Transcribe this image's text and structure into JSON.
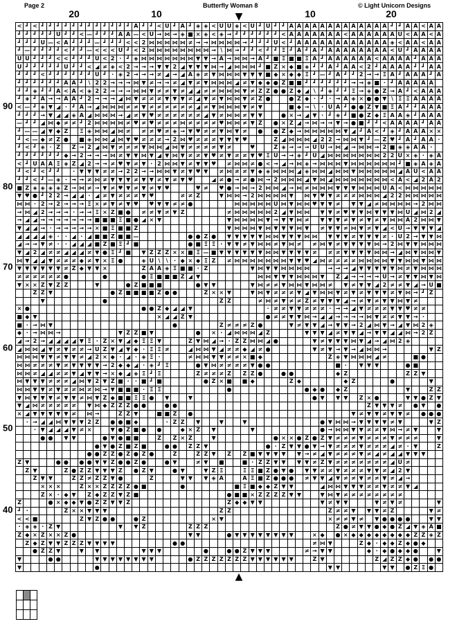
{
  "header": {
    "page": "Page 2",
    "title": "Butterfly Woman 8",
    "copyright": "© Light Unicorn Designs"
  },
  "column_labels": [
    "20",
    "10",
    "10",
    "20"
  ],
  "row_labels": [
    "90",
    "80",
    "70",
    "60",
    "50",
    "40"
  ],
  "center_markers": {
    "top": "▼",
    "bottom": "▲"
  },
  "symbol_key": {
    "J": {
      "glyph": "┛",
      "icon": "corner-bracket"
    },
    "<": {
      "glyph": "<",
      "icon": "less-than"
    },
    "A": {
      "glyph": "A",
      "icon": "letter-a"
    },
    "U": {
      "glyph": "U",
      "icon": "letter-u"
    },
    "d": {
      "glyph": "◈",
      "icon": "hatched-diamond"
    },
    "#": {
      "glyph": "≠",
      "icon": "slashed-hash"
    },
    ">": {
      "glyph": "→",
      "icon": "arrow-right"
    },
    "H": {
      "glyph": "⋈",
      "icon": "bowtie"
    },
    "V": {
      "glyph": "▼",
      "icon": "triangle-down"
    },
    "Z": {
      "glyph": "Z",
      "icon": "letter-z"
    },
    "X": {
      "glyph": "×",
      "icon": "cross"
    },
    "S": {
      "glyph": "■",
      "icon": "filled-square"
    },
    "O": {
      "glyph": "●",
      "icon": "filled-circle"
    },
    "D": {
      "glyph": "◆",
      "icon": "filled-diamond"
    },
    "h": {
      "glyph": "♥",
      "icon": "heart"
    },
    "T": {
      "glyph": "◢",
      "icon": "right-triangle"
    },
    "2": {
      "glyph": "2",
      "icon": "digit-two"
    },
    "I": {
      "glyph": "Ξ",
      "icon": "hourglass"
    },
    "-": {
      "glyph": "—",
      "icon": "dash"
    },
    ".": {
      "glyph": "·",
      "icon": "dot"
    },
    "\\": {
      "glyph": "\\",
      "icon": "backslash"
    }
  },
  "chart_rows": [
    "<J<JJJJJJJJJJJJAJJ<UJAJdd<UUd<UJUJJAAAAAAAAAAAAAJJAA<AA",
    "JJJJJUJJ<-JJJAA-<U>H>dSXd<d>JJJJJJ<AAAAAAA<AAAAAAU<AA<A",
    "JJJU-<AJJJ-JJJ<<2HHHHH#>>HHHH>JJJU<JAAAAAAAAAAAAd<AA<AA",
    "J-JJJJ<JJ-<<<UJ<2HHHHHHHH>\\H>JJ<JJIJAJAJAAAAAAAA<UJAAAA",
    "UUJJJ<<JJJU<2.JdHHHHHHHVV>A>HH>AJSISSIAJAAAAAA<AAAAJAAA",
    "UJJJJJUJJ<T#d<2>>>VV2TVVVH>THHHJSZXDSdJJAJAA<2JAAAAJJAA",
    "JJJ<JJJJJJUJ.d2>>>#T>TAd#VHHHVVVSDXDDIJ-JAJJ2>>IAJAAAJA",
    "JJJJJJAAJ\\22>>>HV#>>#TV#VHHHT#VDDOZSSJJJJJJ>>dS.JAAAAA",
    "JJdJJA<A<d22>>>HHV##V#TT##HHHV#ZZOOZDT\\JdJJI>dOZ>AJ<AAA",
    "JdJA>>AAJ2>>>THV###VVV#TV#VHHV#ZO  OZD.J.>AdXOOV\\IIAAAA",
    "<-JdVT.JA>THHH##V######T#VHHHV#V   SD>\\.UAJOOZVSIAJJAAA",
    "JJJ>VTTdATHHH>T#Vh######TV#HH#VV  OX>TV.JdJSOZDIAAdJAAA",
    "-JJTHD##J2HHHH#h#h###H####hHH#VZ OXZT>H>>V>OSJJ<AAAAJAA",
    "J--TVDZ IdHHTH# ##h#d>Vh##VHV# O OZD>HHHHHVTJA<JdJAAAXX",
    "J<-D#ZO SdHHTHVh###>2Hh###VVVh   ZTHHHT22>HHVJ-ZhJAJAA.",
    "J<Jd.Z Z>2THV###VHHTHV####V#  h  Zd>>>UU>HT>HH>2SddAA. ",
    "JJJJJJD>2>>>H#VVHVTVHV##Vh#V##VhIU>>dJUTHHHHHHH22UXd.dA",
    "<JUAAIdZT2>>#hV#V.2HHV#VVh #HH#O<>T>Hd>HHHVHHHHHHJSdAdA",
    "J<J<JJ .VVV##>22>>HHV#VhV #H##VDdHHHTdHHTHHVHHHHHTAU<AA",
    "JJ<J-d.>>#H#VVV#VV#V#Vh  T#O>#OH>2HHHTVHTHHHHHHH<A<T2A2",
    "SZddddZ>H#>V#hV#V#Vh   h# hO>H>2HHT>H#HHHVVVHHHUA<HHHHH",
    "VhOJ22>TT.T#V###Vh   ##Z  VHH>2HHHHV HVhV###HHHT22HHHHH",
    "HH.2>2>>>IX#V#Vh hVV##O     HHHHHUHVHHhVV# VVT#HHHH>2HH",
    ">HT2>>>.>>IXZSO ##V#VZ     #HHHHH2TVHH VV#hVVHVVVHUTH2T",
    ">TT>>>>>>>SSSISOTXV        VHHHHV>VVH# VVV#V#V#VHHA2HHV",
    "VTT>.>>>>>XSISSZ           VHHHVHVVVHV #VV#HV#VT<U>VVVT",
    "TTTTd..T.TSSZSS-      OOZO VVVVVHHVVVHH VVV#VVV#.U2>VVH",
    "T>>V#..TTTSZSIJS      OSII.VV#VHH#VH# #HV#VVVVH>2HVVHHH",
    "VT2T##TTT#VOIJS VZZZXXSI-SVVVVVVHHVVVV# ##VVVVHH>THVHHV",
    "HVTTV###D#VXIO  dU\\\\.DXDIZ #HHHHHHHVVhTH####HHHHVVHHVHH",
    "VVVVVV#ZDVVX    ZAAdISS.Z     VHVVHHHH  >>>TVVVVVH#VHHH",
    "######O    O    OISSSZTV       HHVVVHHHV ZT>>>>U>#VVHVH2",
    "VXXZVZZ   V   OZSSS    OVV    VH##VHHVHH# V#VVT2##VT>US",
    "  ZZV       OZSSSSZOO   ZXXV  VHV###VTVHHV#V#VVV#VH>JZ ",
    "   V       O              ZZ   #H#V##Z#VVVT>#V#VVHV#   ",
    "XO              OOZDTTV         .##VV###.>>TV###VVh##  ",
    "SDV               XTTZV         O##VVH>TT>>>>HV##VV>.  ",
    "S.>HV               O     Z###ZO   V#VVT>VV>2THV>TVH2d ",
    "D.>HH>       VZZSV     O X.THHHTZ    VVVT#VVT>VVTTH>2Z ",
    "T>2>TTTTVI.ZXVTDIIV   ZVHT>.ZZHHTO    V#VVVHVT>TH2d    ",
    "THHTV#V##>UZVTVD.II#  THHVT##DT#O     V#V>V>THH>     VZ",
    "HHHVV#VV#T2XD.T.dI.   #HHVV##XSD        ZdVHHHT#   SO ",
    "HH###V#VVVV>2DDT.dJI   OVH####VOO        S. VVV   OS   ",
    "HH#TT##VTVV>XDTdIJI    Z###Z ZZO  OO     DZ       ZZV  ",
    "HVVV###THV2VZS..SJS     OZXS SD    ZD     DZ    O    V ",
    "HHVV#V##H#H>VSSS.II        O         ODO DZ       V  ZZ",
    "VHVVV#VV#HVZDSSIIO V  V               OV VV ZXO   VVOZV",
    "VTH##### VHDZZZOO  OO                        ZVVV# OV O",
    "XTVVVVV# H>  ZZV  SSZ O                    V#VV#VV# OOO",
    " .>TTHVVV2Z OOSD   .ZZ V  V  V         OVHH>VVVV#V   VZ",
    "  .VTTTV#X  VOZSO O  DXZ V    V        O>HHVV##VH>#V  V",
    "   OO VV   OVOSS  Z ZXZ  V       OXXOZOZV###V###V###  V",
    "          OVOZSZS  OO ZZV       O.ZVVOV>V###V###T#.V  Z",
    "         OOZZOZOZO  Z  ZZV Z ZSVVVV V>#TV###V#T#TTVVV  ",
    "ZV   OO OOVVZOOZO  OV  #V S  S.ZZVV VV#ZV#######TU#    ",
    " ZV   ZOZZVVVZ OZV  OV  VZI  IISZOVO VV##V###VV#T2V    ",
    "  ZVV  ZZ#ZZVO   Z   VV VdA  AISZOOO #VVTV##V##V#T>    ",
    "   XXX  ZXXZZZZOS    O      SISDDZVV   THHVVV##V##VT   ",
    "   ZX.DV ZDZZVZS           OSSXZZZZVV  VHV########     ",
    "Z   OXDDVOZZVVZ            ZDDVV       V#VV   V#V#    V",
    "J.    ZXXVVV              ZZ            Z##V VV#Z    V#",
    "<<S     ZVZOO  OZ        XV             X##V# VOOOO  VV",
    ".dd.ZV       V VZ     ZZZ                ZO#VVODOZTVdAS",
    "ZDXZXXZO              VV   OVVVVVVVV  XD OXDDDDDDDDZZdZ",
    " ZDZVVZZZVVVV       OO                #HV   ZD.DDZDOD  ",
    "  OZZV  V V     VVV     O  OOZVVV    #>VV    D.DODDO  V",
    "V   OO    VVVVVVVV    OZZZZZZZVVVVVV  ZV      ZTZZDO OO",
    "V         O                             VV     VV OZIO "
  ],
  "thumbnail": {
    "columns": 3,
    "rows": 3,
    "highlighted_cell": [
      1,
      2
    ]
  }
}
